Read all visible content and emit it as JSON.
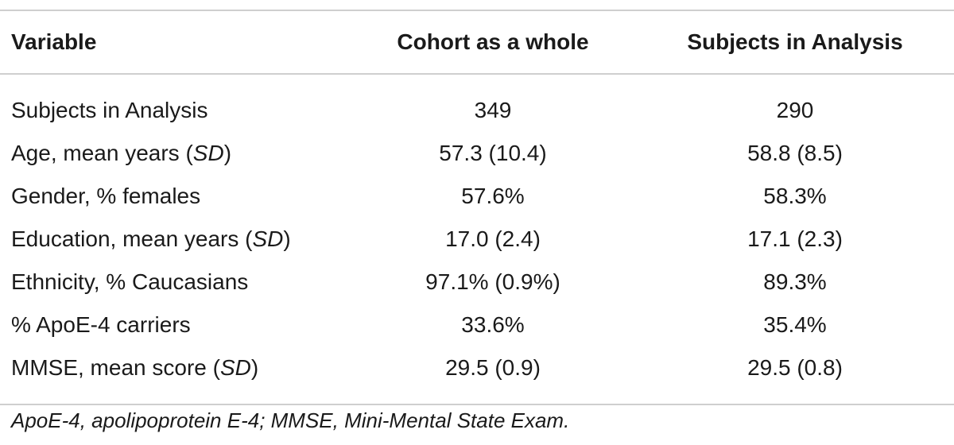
{
  "table": {
    "headers": [
      "Variable",
      "Cohort as a whole",
      "Subjects in Analysis"
    ],
    "rows": [
      {
        "variable": "Subjects in Analysis",
        "variable_suffix": "",
        "variable_italic": "",
        "variable_close": "",
        "cohort": "349",
        "subjects": "290"
      },
      {
        "variable": "Age, mean years ",
        "variable_suffix": "(",
        "variable_italic": "SD",
        "variable_close": ")",
        "cohort": "57.3 (10.4)",
        "subjects": "58.8 (8.5)"
      },
      {
        "variable": "Gender, % females",
        "variable_suffix": "",
        "variable_italic": "",
        "variable_close": "",
        "cohort": "57.6%",
        "subjects": "58.3%"
      },
      {
        "variable": "Education, mean years ",
        "variable_suffix": "(",
        "variable_italic": "SD",
        "variable_close": ")",
        "cohort": "17.0 (2.4)",
        "subjects": "17.1 (2.3)"
      },
      {
        "variable": "Ethnicity, % Caucasians",
        "variable_suffix": "",
        "variable_italic": "",
        "variable_close": "",
        "cohort": "97.1% (0.9%)",
        "subjects": "89.3%"
      },
      {
        "variable": "% ApoE-4 carriers",
        "variable_suffix": "",
        "variable_italic": "",
        "variable_close": "",
        "cohort": "33.6%",
        "subjects": "35.4%"
      },
      {
        "variable": "MMSE, mean score ",
        "variable_suffix": "(",
        "variable_italic": "SD",
        "variable_close": ")",
        "cohort": "29.5 (0.9)",
        "subjects": "29.5 (0.8)"
      }
    ]
  },
  "footnote": "ApoE-4, apolipoprotein E-4; MMSE, Mini-Mental State Exam."
}
